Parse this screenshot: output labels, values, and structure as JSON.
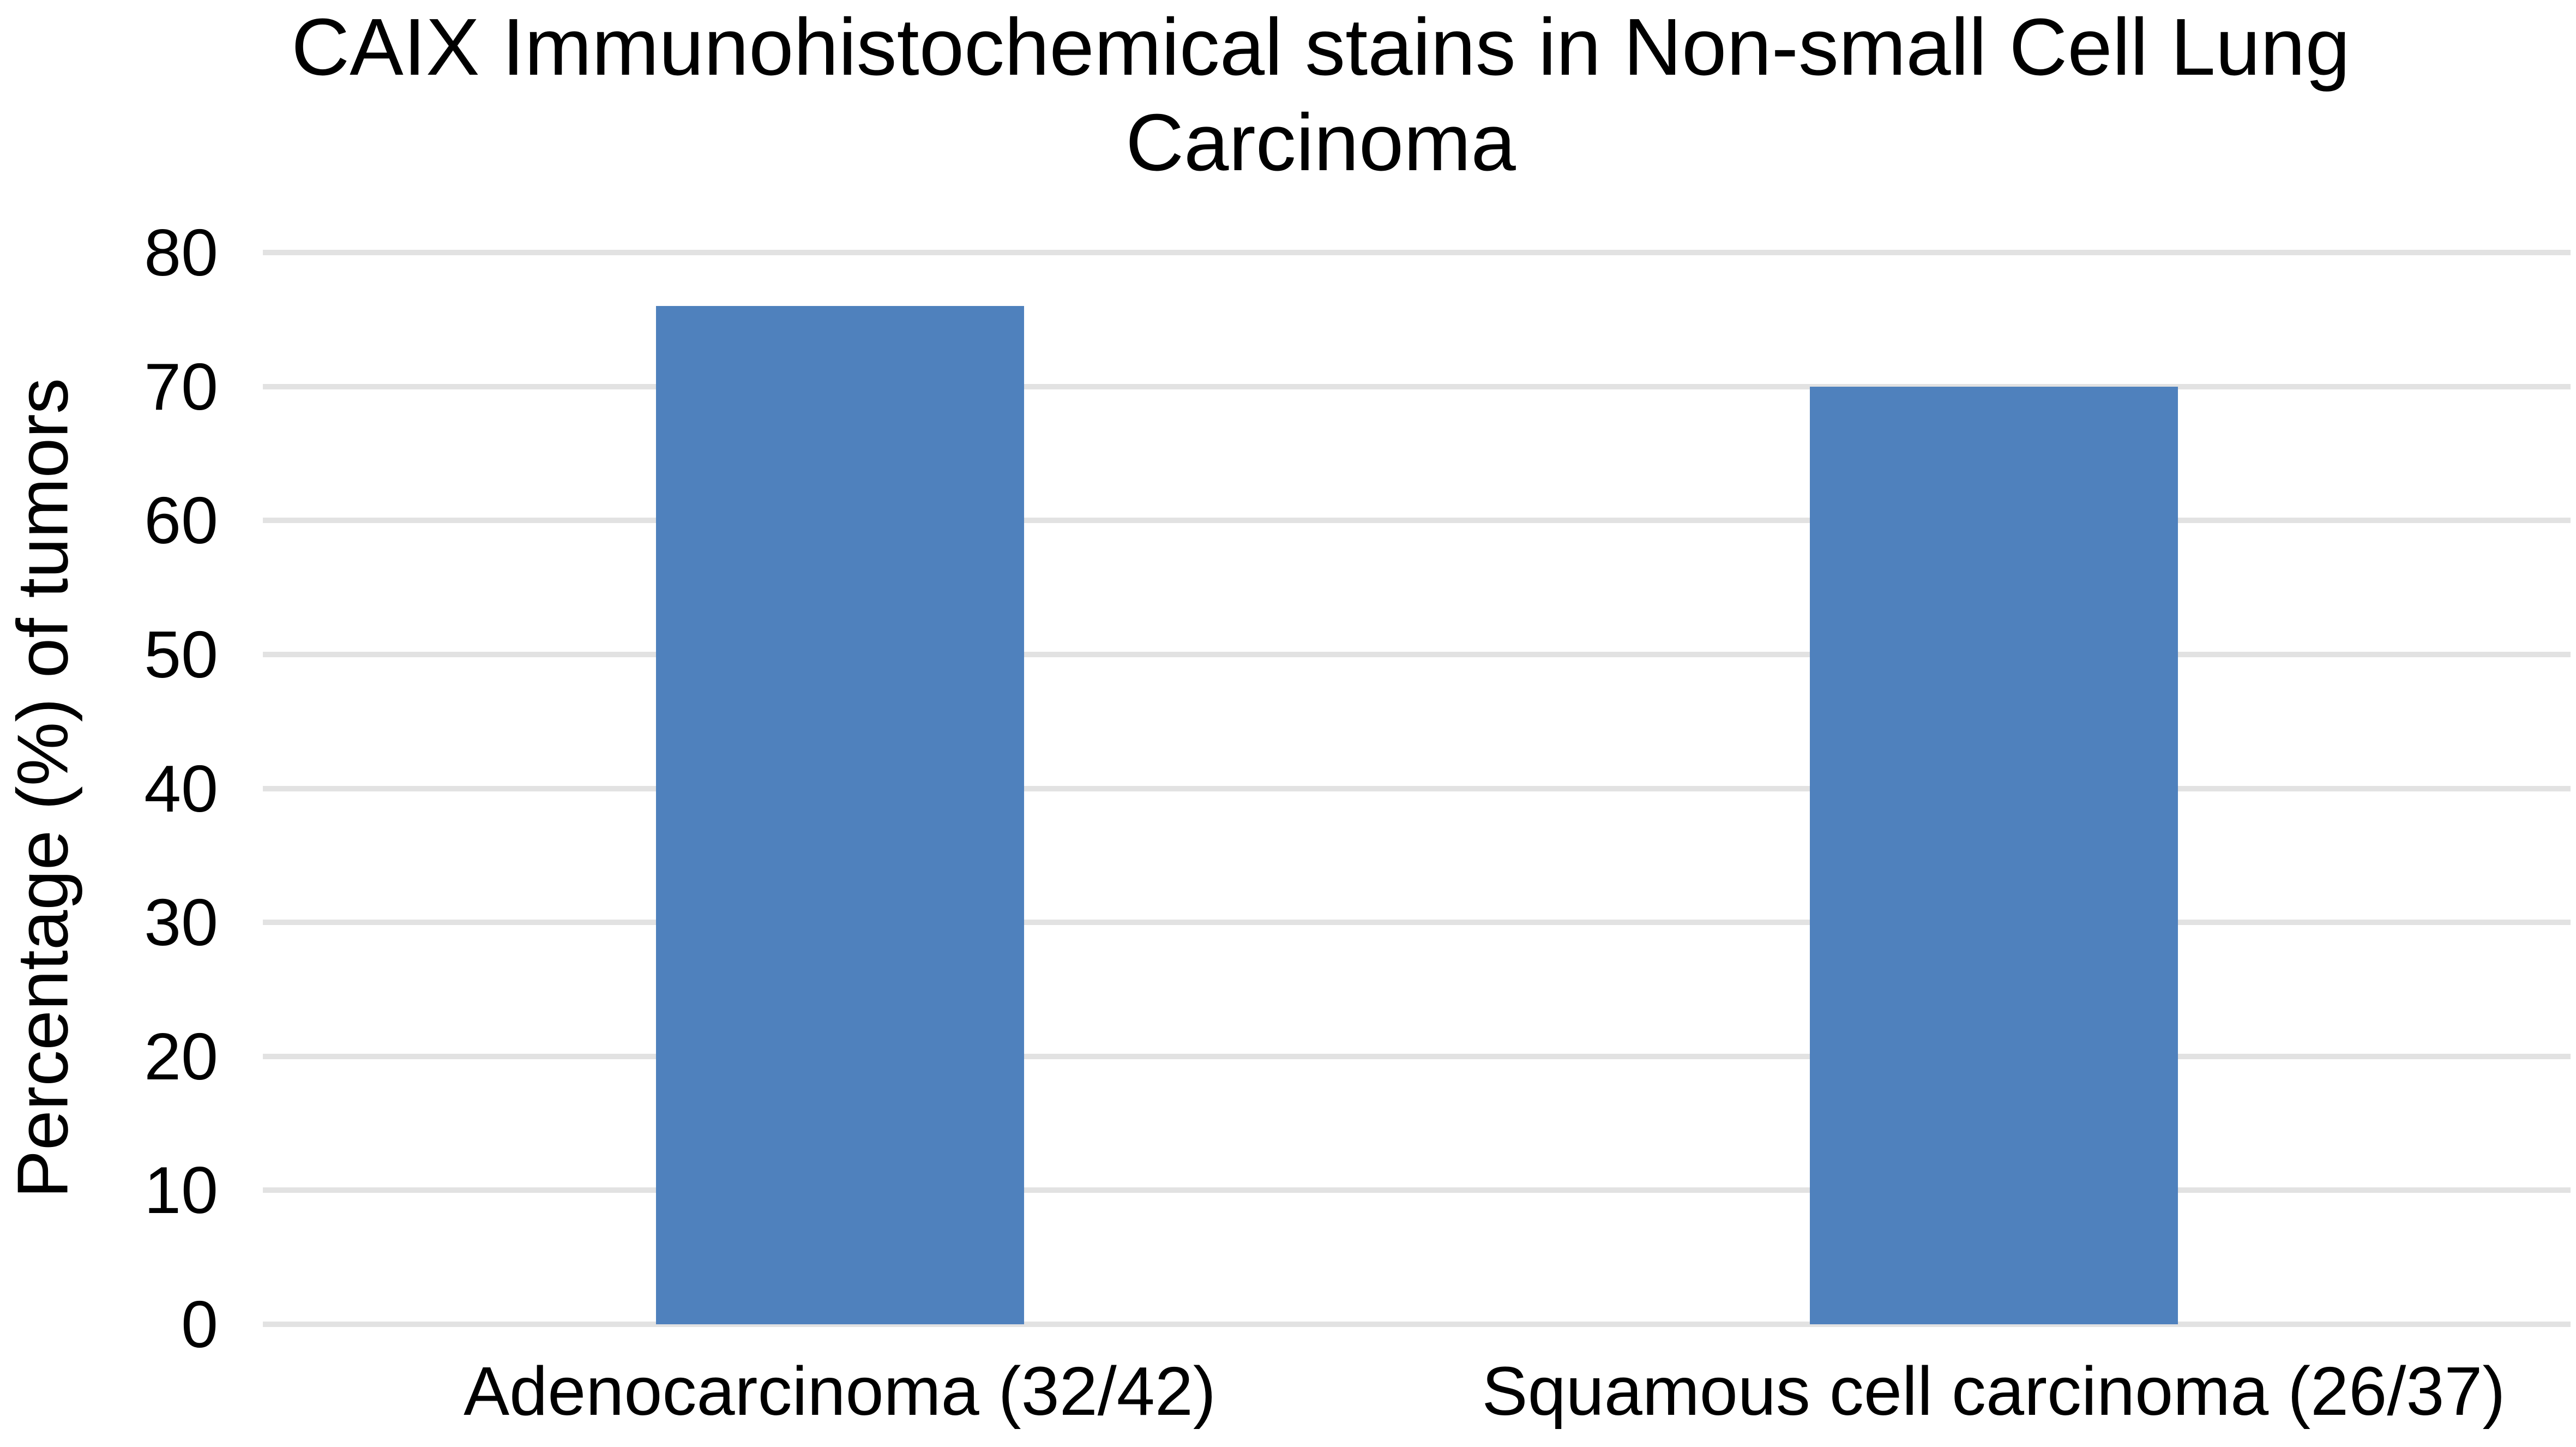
{
  "chart_data": {
    "type": "bar",
    "title": "CAIX Immunohistochemical stains in Non-small Cell Lung Carcinoma",
    "title_lines": [
      "CAIX Immunohistochemical stains in Non-small Cell Lung",
      "Carcinoma"
    ],
    "ylabel": "Percentage (%) of tumors",
    "xlabel": "",
    "categories": [
      "Adenocarcinoma (32/42)",
      "Squamous cell carcinoma (26/37)"
    ],
    "values": [
      76,
      70
    ],
    "ylim": [
      0,
      80
    ],
    "yticks": [
      0,
      10,
      20,
      30,
      40,
      50,
      60,
      70,
      80
    ],
    "grid": true,
    "legend": false,
    "bar_color": "#4F81BD",
    "gridline_color": "#E2E2E2",
    "text_color": "#000000",
    "background": "#FFFFFF"
  }
}
